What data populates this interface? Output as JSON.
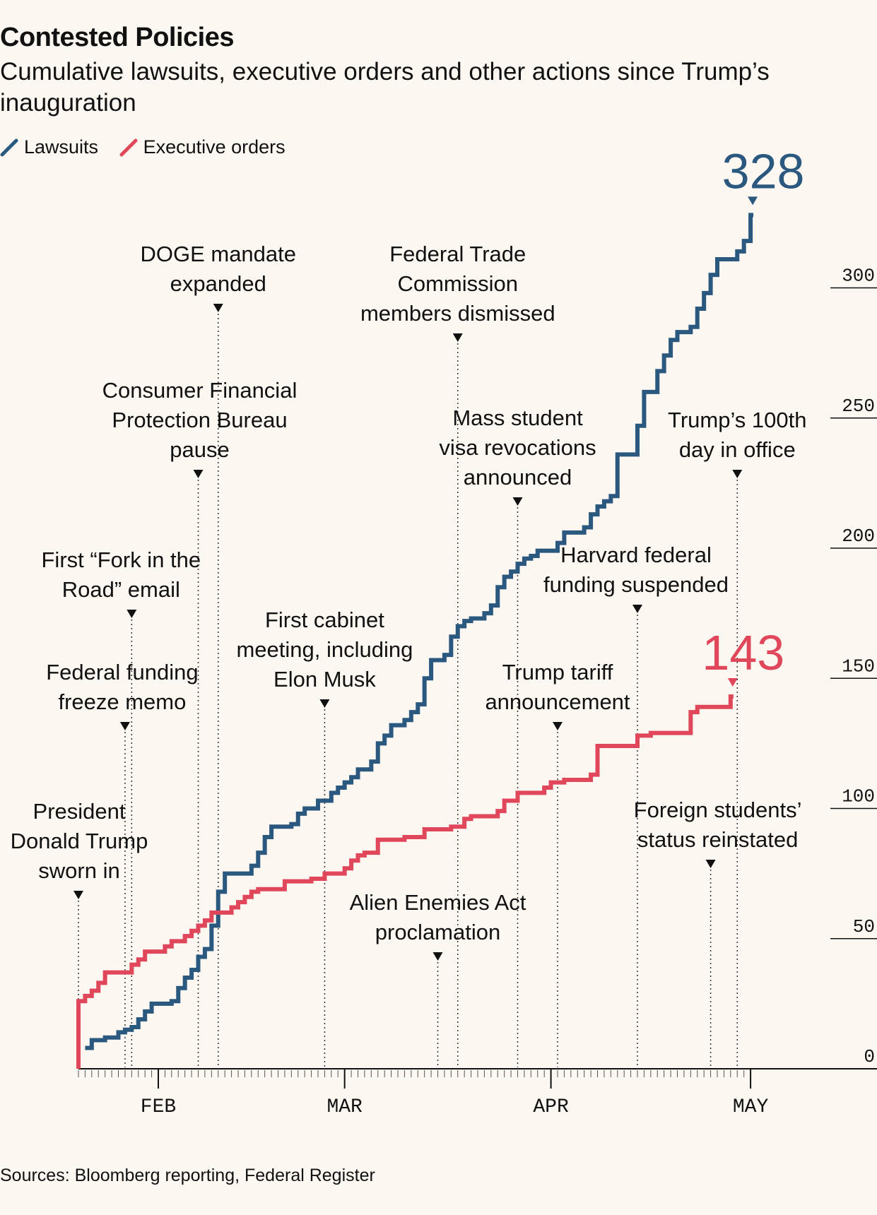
{
  "title": "Contested Policies",
  "subtitle": "Cumulative lawsuits, executive orders and other actions since Trump’s inauguration",
  "legend": [
    {
      "label": "Lawsuits",
      "color": "#2a587f"
    },
    {
      "label": "Executive orders",
      "color": "#e0475b"
    }
  ],
  "source": "Sources: Bloomberg reporting, Federal Register",
  "chart_data": {
    "type": "line",
    "title": "Contested Policies",
    "subtitle": "Cumulative lawsuits, executive orders and other actions since Trump’s inauguration",
    "x_type": "date",
    "xlim": [
      "2025-01-20",
      "2025-05-20"
    ],
    "ylim": [
      0,
      340
    ],
    "y_ticks": [
      0,
      50,
      100,
      150,
      200,
      250,
      300
    ],
    "x_ticks": [
      {
        "date": "2025-02-01",
        "label": "FEB"
      },
      {
        "date": "2025-03-01",
        "label": "MAR"
      },
      {
        "date": "2025-04-01",
        "label": "APR"
      },
      {
        "date": "2025-05-01",
        "label": "MAY"
      }
    ],
    "series": [
      {
        "name": "Lawsuits",
        "color": "#2a587f",
        "end_label": "328",
        "points": [
          [
            "2025-01-21",
            8
          ],
          [
            "2025-01-22",
            11
          ],
          [
            "2025-01-24",
            12
          ],
          [
            "2025-01-26",
            14
          ],
          [
            "2025-01-27",
            15
          ],
          [
            "2025-01-28",
            16
          ],
          [
            "2025-01-29",
            19
          ],
          [
            "2025-01-30",
            22
          ],
          [
            "2025-01-31",
            25
          ],
          [
            "2025-02-03",
            26
          ],
          [
            "2025-02-04",
            31
          ],
          [
            "2025-02-05",
            35
          ],
          [
            "2025-02-06",
            38
          ],
          [
            "2025-02-07",
            43
          ],
          [
            "2025-02-08",
            46
          ],
          [
            "2025-02-09",
            55
          ],
          [
            "2025-02-10",
            68
          ],
          [
            "2025-02-11",
            75
          ],
          [
            "2025-02-15",
            78
          ],
          [
            "2025-02-16",
            83
          ],
          [
            "2025-02-17",
            89
          ],
          [
            "2025-02-18",
            93
          ],
          [
            "2025-02-21",
            94
          ],
          [
            "2025-02-22",
            98
          ],
          [
            "2025-02-23",
            100
          ],
          [
            "2025-02-25",
            103
          ],
          [
            "2025-02-27",
            106
          ],
          [
            "2025-02-28",
            108
          ],
          [
            "2025-03-01",
            110
          ],
          [
            "2025-03-02",
            112
          ],
          [
            "2025-03-03",
            115
          ],
          [
            "2025-03-05",
            118
          ],
          [
            "2025-03-06",
            125
          ],
          [
            "2025-03-07",
            128
          ],
          [
            "2025-03-08",
            132
          ],
          [
            "2025-03-10",
            134
          ],
          [
            "2025-03-11",
            137
          ],
          [
            "2025-03-12",
            140
          ],
          [
            "2025-03-13",
            150
          ],
          [
            "2025-03-14",
            157
          ],
          [
            "2025-03-16",
            159
          ],
          [
            "2025-03-17",
            166
          ],
          [
            "2025-03-18",
            170
          ],
          [
            "2025-03-19",
            172
          ],
          [
            "2025-03-20",
            173
          ],
          [
            "2025-03-22",
            175
          ],
          [
            "2025-03-23",
            178
          ],
          [
            "2025-03-24",
            185
          ],
          [
            "2025-03-25",
            189
          ],
          [
            "2025-03-26",
            191
          ],
          [
            "2025-03-27",
            194
          ],
          [
            "2025-03-28",
            196
          ],
          [
            "2025-03-29",
            197
          ],
          [
            "2025-03-30",
            199
          ],
          [
            "2025-04-02",
            202
          ],
          [
            "2025-04-03",
            206
          ],
          [
            "2025-04-06",
            208
          ],
          [
            "2025-04-07",
            213
          ],
          [
            "2025-04-08",
            216
          ],
          [
            "2025-04-09",
            218
          ],
          [
            "2025-04-10",
            220
          ],
          [
            "2025-04-11",
            236
          ],
          [
            "2025-04-14",
            247
          ],
          [
            "2025-04-15",
            260
          ],
          [
            "2025-04-17",
            268
          ],
          [
            "2025-04-18",
            274
          ],
          [
            "2025-04-19",
            280
          ],
          [
            "2025-04-20",
            283
          ],
          [
            "2025-04-22",
            285
          ],
          [
            "2025-04-23",
            292
          ],
          [
            "2025-04-24",
            298
          ],
          [
            "2025-04-25",
            305
          ],
          [
            "2025-04-26",
            311
          ],
          [
            "2025-04-29",
            314
          ],
          [
            "2025-04-30",
            318
          ],
          [
            "2025-05-01",
            322
          ],
          [
            "2025-05-01",
            328
          ]
        ]
      },
      {
        "name": "Executive orders",
        "color": "#e0475b",
        "end_label": "143",
        "points": [
          [
            "2025-01-20",
            0
          ],
          [
            "2025-01-20",
            26
          ],
          [
            "2025-01-21",
            28
          ],
          [
            "2025-01-22",
            30
          ],
          [
            "2025-01-23",
            33
          ],
          [
            "2025-01-24",
            37
          ],
          [
            "2025-01-28",
            40
          ],
          [
            "2025-01-29",
            42
          ],
          [
            "2025-01-30",
            45
          ],
          [
            "2025-02-02",
            47
          ],
          [
            "2025-02-03",
            49
          ],
          [
            "2025-02-05",
            51
          ],
          [
            "2025-02-06",
            53
          ],
          [
            "2025-02-07",
            55
          ],
          [
            "2025-02-08",
            57
          ],
          [
            "2025-02-09",
            60
          ],
          [
            "2025-02-12",
            62
          ],
          [
            "2025-02-13",
            64
          ],
          [
            "2025-02-14",
            66
          ],
          [
            "2025-02-15",
            68
          ],
          [
            "2025-02-16",
            69
          ],
          [
            "2025-02-20",
            72
          ],
          [
            "2025-02-24",
            73
          ],
          [
            "2025-02-26",
            75
          ],
          [
            "2025-03-01",
            77
          ],
          [
            "2025-03-02",
            80
          ],
          [
            "2025-03-03",
            82
          ],
          [
            "2025-03-04",
            83
          ],
          [
            "2025-03-06",
            88
          ],
          [
            "2025-03-10",
            89
          ],
          [
            "2025-03-13",
            92
          ],
          [
            "2025-03-17",
            93
          ],
          [
            "2025-03-19",
            96
          ],
          [
            "2025-03-20",
            97
          ],
          [
            "2025-03-24",
            99
          ],
          [
            "2025-03-25",
            103
          ],
          [
            "2025-03-27",
            106
          ],
          [
            "2025-03-31",
            108
          ],
          [
            "2025-04-01",
            110
          ],
          [
            "2025-04-03",
            111
          ],
          [
            "2025-04-07",
            113
          ],
          [
            "2025-04-08",
            124
          ],
          [
            "2025-04-14",
            128
          ],
          [
            "2025-04-16",
            129
          ],
          [
            "2025-04-22",
            137
          ],
          [
            "2025-04-23",
            139
          ],
          [
            "2025-04-28",
            142
          ],
          [
            "2025-04-28",
            143
          ]
        ]
      }
    ],
    "annotations": [
      {
        "date": "2025-01-20",
        "lines": [
          "President",
          "Donald Trump",
          "sworn in"
        ]
      },
      {
        "date": "2025-01-27",
        "lines": [
          "Federal funding",
          "freeze memo"
        ]
      },
      {
        "date": "2025-01-28",
        "lines": [
          "First “Fork in the",
          "Road” email"
        ]
      },
      {
        "date": "2025-02-07",
        "lines": [
          "Consumer Financial",
          "Protection Bureau",
          "pause"
        ]
      },
      {
        "date": "2025-02-10",
        "lines": [
          "DOGE mandate",
          "expanded"
        ]
      },
      {
        "date": "2025-02-26",
        "lines": [
          "First cabinet",
          "meeting, including",
          "Elon Musk"
        ]
      },
      {
        "date": "2025-03-15",
        "lines": [
          "Alien Enemies Act",
          "proclamation"
        ]
      },
      {
        "date": "2025-03-18",
        "lines": [
          "Federal Trade",
          "Commission",
          "members dismissed"
        ]
      },
      {
        "date": "2025-03-27",
        "lines": [
          "Mass student",
          "visa revocations",
          "announced"
        ]
      },
      {
        "date": "2025-04-02",
        "lines": [
          "Trump tariff",
          "announcement"
        ]
      },
      {
        "date": "2025-04-14",
        "lines": [
          "Harvard federal",
          "funding suspended"
        ]
      },
      {
        "date": "2025-04-25",
        "lines": [
          "Foreign students’",
          "status reinstated"
        ]
      },
      {
        "date": "2025-04-29",
        "lines": [
          "Trump’s 100th",
          "day in office"
        ]
      }
    ]
  }
}
